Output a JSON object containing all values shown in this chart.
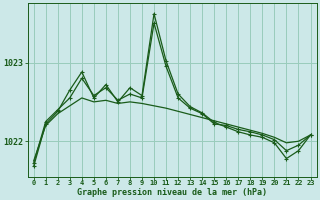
{
  "title": "Graphe pression niveau de la mer (hPa)",
  "background_color": "#cce8e8",
  "plot_bg_color": "#cce8e8",
  "grid_color": "#99ccbb",
  "line_color": "#1a5c1a",
  "xlim": [
    -0.5,
    23.5
  ],
  "ylim": [
    1021.55,
    1023.75
  ],
  "yticks": [
    1022,
    1023
  ],
  "xticks": [
    0,
    1,
    2,
    3,
    4,
    5,
    6,
    7,
    8,
    9,
    10,
    11,
    12,
    13,
    14,
    15,
    16,
    17,
    18,
    19,
    20,
    21,
    22,
    23
  ],
  "series1_x": [
    0,
    1,
    2,
    3,
    4,
    5,
    6,
    7,
    8,
    9,
    10,
    11,
    12,
    13,
    14,
    15,
    16,
    17,
    18,
    19,
    20,
    21,
    22,
    23
  ],
  "series1_y": [
    1021.75,
    1022.2,
    1022.35,
    1022.45,
    1022.55,
    1022.5,
    1022.52,
    1022.48,
    1022.5,
    1022.48,
    1022.45,
    1022.42,
    1022.38,
    1022.34,
    1022.3,
    1022.26,
    1022.22,
    1022.18,
    1022.14,
    1022.1,
    1022.05,
    1021.98,
    1022.0,
    1022.08
  ],
  "series2_x": [
    0,
    1,
    2,
    3,
    4,
    5,
    6,
    7,
    8,
    9,
    10,
    11,
    12,
    13,
    14,
    15,
    16,
    17,
    18,
    19,
    20,
    21,
    22,
    23
  ],
  "series2_y": [
    1021.72,
    1022.25,
    1022.4,
    1022.55,
    1022.8,
    1022.58,
    1022.68,
    1022.52,
    1022.6,
    1022.55,
    1023.5,
    1022.95,
    1022.55,
    1022.42,
    1022.35,
    1022.22,
    1022.2,
    1022.15,
    1022.12,
    1022.08,
    1022.02,
    1021.88,
    1021.95,
    1022.08
  ],
  "series3_x": [
    0,
    1,
    2,
    3,
    4,
    5,
    6,
    7,
    8,
    9,
    10,
    11,
    12,
    13,
    14,
    15,
    16,
    17,
    18,
    19,
    20,
    21,
    22,
    23
  ],
  "series3_y": [
    1021.68,
    1022.22,
    1022.38,
    1022.65,
    1022.88,
    1022.55,
    1022.72,
    1022.5,
    1022.68,
    1022.58,
    1023.62,
    1023.02,
    1022.6,
    1022.44,
    1022.36,
    1022.24,
    1022.18,
    1022.12,
    1022.08,
    1022.05,
    1021.98,
    1021.78,
    1021.88,
    1022.08
  ]
}
